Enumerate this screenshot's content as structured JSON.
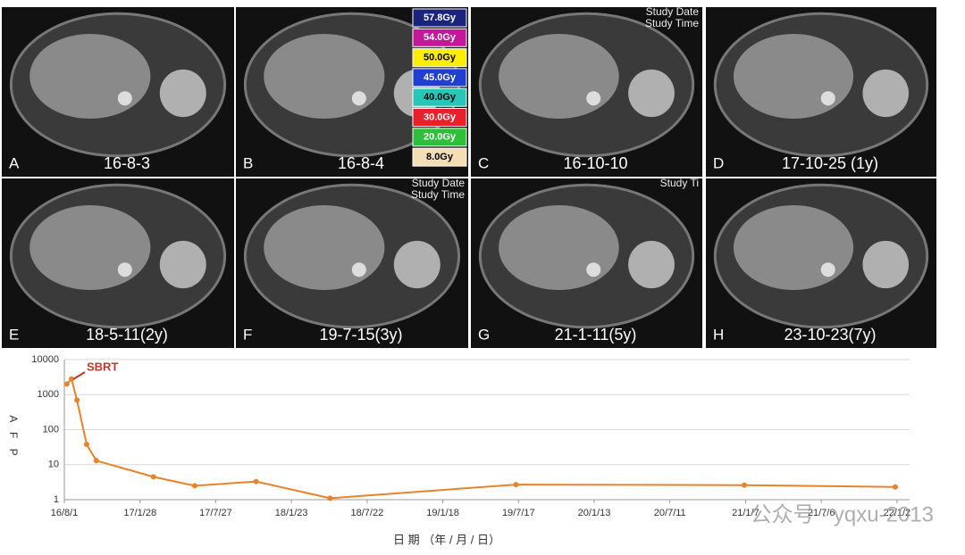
{
  "panels": [
    {
      "letter": "A",
      "date": "16-8-3"
    },
    {
      "letter": "B",
      "date": "16-8-4"
    },
    {
      "letter": "C",
      "date": "16-10-10",
      "overlay": [
        "Study Date",
        "Study Time"
      ]
    },
    {
      "letter": "D",
      "date": "17-10-25 (1y)"
    },
    {
      "letter": "E",
      "date": "18-5-11(2y)"
    },
    {
      "letter": "F",
      "date": "19-7-15(3y)",
      "overlay": [
        "Study Date",
        "Study Time"
      ]
    },
    {
      "letter": "G",
      "date": "21-1-11(5y)",
      "overlay": [
        "Study Ti"
      ]
    },
    {
      "letter": "H",
      "date": "23-10-23(7y)"
    }
  ],
  "dose_legend": [
    {
      "label": "57.8Gy",
      "color": "#1a237e"
    },
    {
      "label": "54.0Gy",
      "color": "#c2189a"
    },
    {
      "label": "50.0Gy",
      "color": "#ffee00"
    },
    {
      "label": "45.0Gy",
      "color": "#1e3fd0"
    },
    {
      "label": "40.0Gy",
      "color": "#26c6b8"
    },
    {
      "label": "30.0Gy",
      "color": "#e8202a"
    },
    {
      "label": "20.0Gy",
      "color": "#2fbf3a"
    },
    {
      "label": "8.0Gy",
      "color": "#f5deb3"
    }
  ],
  "watermark": "公众号 · yqxu-2013",
  "chart_data": {
    "type": "line",
    "annotation": "SBRT",
    "x_label": "日 期 （年 / 月 / 日）",
    "y_label": "A F P",
    "log_y": true,
    "grid": true,
    "xlim": [
      0,
      2010
    ],
    "ylim": [
      1,
      10000
    ],
    "xticks": [
      {
        "value": 0,
        "label": "16/8/1"
      },
      {
        "value": 180,
        "label": "17/1/28"
      },
      {
        "value": 360,
        "label": "17/7/27"
      },
      {
        "value": 540,
        "label": "18/1/23"
      },
      {
        "value": 720,
        "label": "18/7/22"
      },
      {
        "value": 900,
        "label": "19/1/18"
      },
      {
        "value": 1080,
        "label": "19/7/17"
      },
      {
        "value": 1260,
        "label": "20/1/13"
      },
      {
        "value": 1440,
        "label": "20/7/11"
      },
      {
        "value": 1620,
        "label": "21/1/7"
      },
      {
        "value": 1800,
        "label": "21/7/6"
      },
      {
        "value": 1980,
        "label": "22/1/2"
      }
    ],
    "yticks": [
      1,
      10,
      100,
      1000,
      10000
    ],
    "series": [
      {
        "color": "#e8822b",
        "x": [
          6,
          17,
          30,
          53,
          76,
          212,
          310,
          456,
          632,
          1074,
          1617,
          1976
        ],
        "values": [
          2000,
          2800,
          700,
          38,
          13,
          4.5,
          2.5,
          3.3,
          1.1,
          2.7,
          2.6,
          2.3
        ]
      }
    ]
  }
}
